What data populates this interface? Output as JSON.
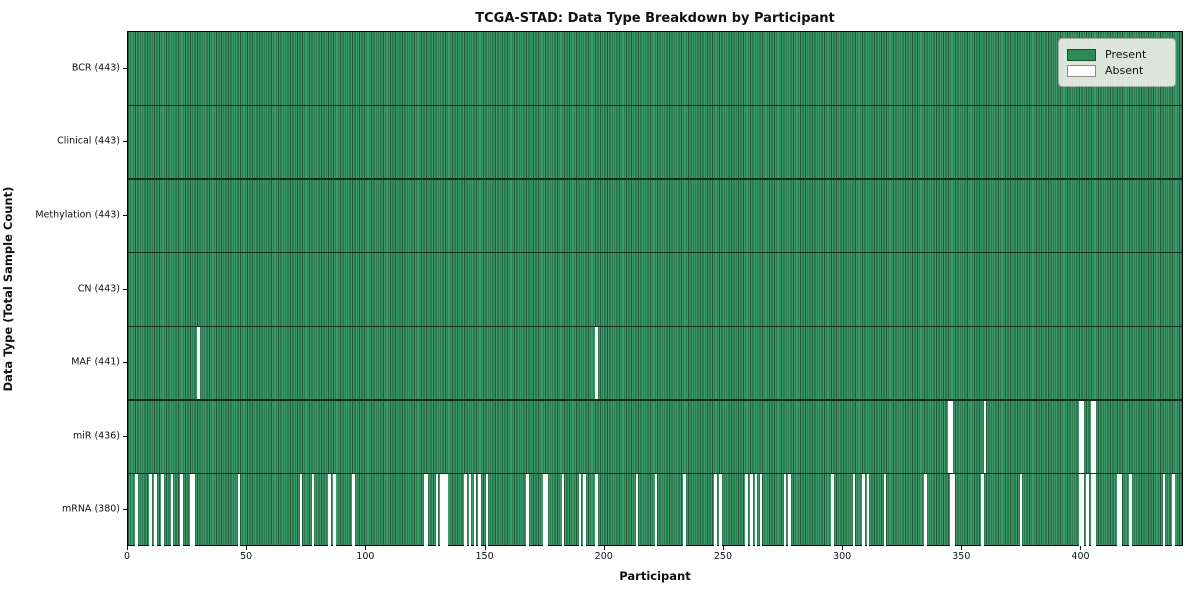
{
  "chart_data": {
    "type": "heatmap",
    "title": "TCGA-STAD: Data Type Breakdown by Participant",
    "xlabel": "Participant",
    "ylabel": "Data Type (Total Sample Count)",
    "x_range": [
      0,
      443
    ],
    "x_ticks": [
      0,
      50,
      100,
      150,
      200,
      250,
      300,
      350,
      400
    ],
    "n_participants": 443,
    "present_color": "#2e8b57",
    "absent_color": "#ffffff",
    "grid": false,
    "legend_position": "upper right",
    "legend": {
      "present_label": "Present",
      "absent_label": "Absent"
    },
    "rows": [
      {
        "name": "BCR",
        "label": "BCR (443)",
        "present_count": 443,
        "absent_participants": []
      },
      {
        "name": "Clinical",
        "label": "Clinical (443)",
        "present_count": 443,
        "absent_participants": []
      },
      {
        "name": "Methylation",
        "label": "Methylation (443)",
        "present_count": 443,
        "absent_participants": []
      },
      {
        "name": "CN",
        "label": "CN (443)",
        "present_count": 443,
        "absent_participants": []
      },
      {
        "name": "MAF",
        "label": "MAF (441)",
        "present_count": 441,
        "absent_participants": [
          29,
          196
        ]
      },
      {
        "name": "miR",
        "label": "miR (436)",
        "present_count": 436,
        "absent_participants": [
          344,
          345,
          359,
          399,
          400,
          404,
          405
        ]
      },
      {
        "name": "mRNA",
        "label": "mRNA (380)",
        "present_count": 380,
        "absent_participants": [
          3,
          9,
          11,
          14,
          18,
          22,
          26,
          27,
          46,
          72,
          77,
          84,
          86,
          94,
          124,
          125,
          129,
          131,
          132,
          133,
          141,
          143,
          145,
          147,
          150,
          167,
          174,
          175,
          182,
          189,
          191,
          196,
          213,
          221,
          233,
          246,
          248,
          259,
          261,
          263,
          265,
          275,
          277,
          295,
          304,
          308,
          310,
          317,
          334,
          345,
          346,
          358,
          374,
          399,
          400,
          402,
          404,
          405,
          415,
          416,
          420,
          434,
          438
        ]
      }
    ]
  }
}
